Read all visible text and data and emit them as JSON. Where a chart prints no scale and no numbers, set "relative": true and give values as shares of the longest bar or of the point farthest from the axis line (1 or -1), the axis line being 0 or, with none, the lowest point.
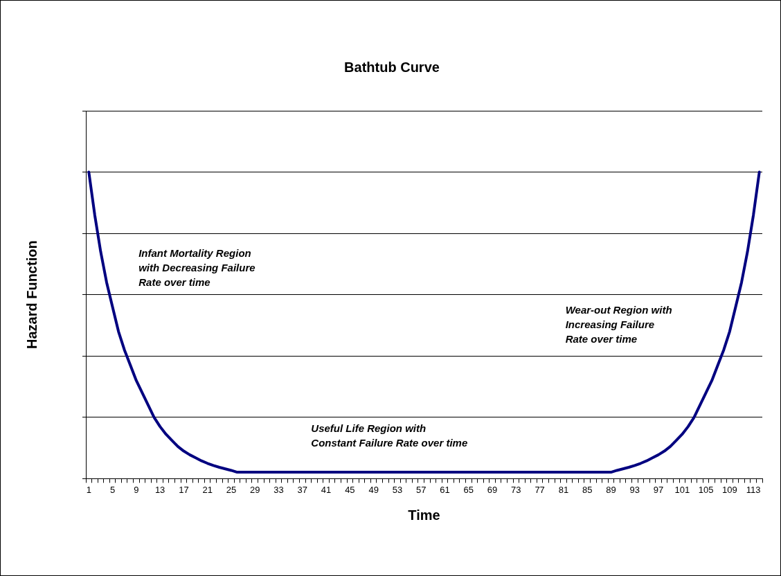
{
  "chart_data": {
    "type": "line",
    "title": "Bathtub Curve",
    "xlabel": "Time",
    "ylabel": "Hazard Function",
    "relative": true,
    "grid": "y",
    "legend": false,
    "marker": "none",
    "line_style": "solid",
    "categories": [
      "1",
      null,
      null,
      null,
      "5",
      null,
      null,
      null,
      "9",
      null,
      null,
      null,
      "13",
      null,
      null,
      null,
      "17",
      null,
      null,
      null,
      "21",
      null,
      null,
      null,
      "25",
      null,
      null,
      null,
      "29",
      null,
      null,
      null,
      "33",
      null,
      null,
      null,
      "37",
      null,
      null,
      null,
      "41",
      null,
      null,
      null,
      "45",
      null,
      null,
      null,
      "49",
      null,
      null,
      null,
      "53",
      null,
      null,
      null,
      "57",
      null,
      null,
      null,
      "61",
      null,
      null,
      null,
      "65",
      null,
      null,
      null,
      "69",
      null,
      null,
      null,
      "73",
      null,
      null,
      null,
      "77",
      null,
      null,
      null,
      "81",
      null,
      null,
      null,
      "85",
      null,
      null,
      null,
      "89",
      null,
      null,
      null,
      "93",
      null,
      null,
      null,
      "97",
      null,
      null,
      null,
      "101",
      null,
      null,
      null,
      "105",
      null,
      null,
      null,
      "109",
      null,
      null,
      null,
      "113",
      null
    ],
    "series": [
      {
        "color": "#000080",
        "values": [
          1.0,
          0.86,
          0.74,
          0.64,
          0.56,
          0.48,
          0.42,
          0.37,
          0.32,
          0.28,
          0.24,
          0.2,
          0.17,
          0.145,
          0.125,
          0.105,
          0.09,
          0.078,
          0.068,
          0.058,
          0.05,
          0.043,
          0.037,
          0.032,
          0.027,
          0.021,
          0.021,
          0.021,
          0.021,
          0.021,
          0.021,
          0.021,
          0.021,
          0.021,
          0.021,
          0.021,
          0.021,
          0.021,
          0.021,
          0.021,
          0.021,
          0.021,
          0.021,
          0.021,
          0.021,
          0.021,
          0.021,
          0.021,
          0.021,
          0.021,
          0.021,
          0.021,
          0.021,
          0.021,
          0.021,
          0.021,
          0.021,
          0.021,
          0.021,
          0.021,
          0.021,
          0.021,
          0.021,
          0.021,
          0.021,
          0.021,
          0.021,
          0.021,
          0.021,
          0.021,
          0.021,
          0.021,
          0.021,
          0.021,
          0.021,
          0.021,
          0.021,
          0.021,
          0.021,
          0.021,
          0.021,
          0.021,
          0.021,
          0.021,
          0.021,
          0.021,
          0.021,
          0.021,
          0.021,
          0.027,
          0.032,
          0.037,
          0.043,
          0.05,
          0.058,
          0.068,
          0.078,
          0.09,
          0.105,
          0.125,
          0.145,
          0.17,
          0.2,
          0.24,
          0.28,
          0.32,
          0.37,
          0.42,
          0.48,
          0.56,
          0.64,
          0.74,
          0.86,
          1.0
        ]
      }
    ],
    "annotations": [
      "Infant Mortality Region\nwith Decreasing Failure\nRate over time",
      "Useful Life Region with\nConstant Failure Rate over time",
      "Wear-out Region with\nIncreasing Failure\nRate over time"
    ]
  }
}
